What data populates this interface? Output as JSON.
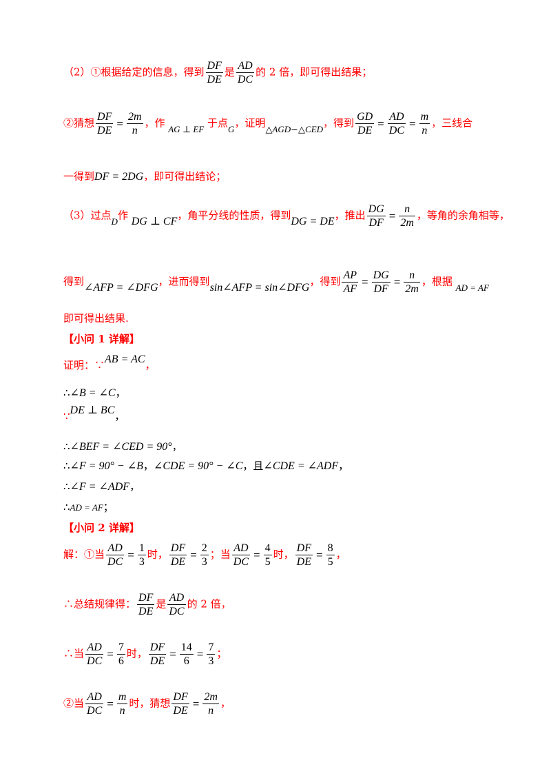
{
  "lines": {
    "l1": {
      "a": "（2）①根据给定的信息，得到",
      "f1_num": "DF",
      "f1_den": "DE",
      "b": "是",
      "f2_num": "AD",
      "f2_den": "DC",
      "c": "的 2 倍，即可得出结果；"
    },
    "l2": {
      "a": "②猜想",
      "f1_num": "DF",
      "f1_den": "DE",
      "eq": "=",
      "f2_num": "2m",
      "f2_den": "n",
      "b": "，作",
      "m1": "AG ⊥ EF",
      "c": "于点",
      "m2": "G",
      "d": "，证明",
      "m3": "△AGD∽△CED",
      "e": "，得到",
      "f3_num": "GD",
      "f3_den": "DE",
      "f4_num": "AD",
      "f4_den": "DC",
      "f5_num": "m",
      "f5_den": "n",
      "f": "，三线合"
    },
    "l3": {
      "a": "一得到",
      "m1": "DF = 2DG",
      "b": "，即可得出结论；"
    },
    "l4": {
      "a": "（3）过点",
      "m1": "D",
      "b": "作",
      "m2": "DG ⊥ CF",
      "c": "，角平分线的性质，得到",
      "m3": "DG = DE",
      "d": "，推出",
      "f1_num": "DG",
      "f1_den": "DF",
      "f2_num": "n",
      "f2_den": "2m",
      "e": "，等角的余角相等，"
    },
    "l5": {
      "a": "得到",
      "m1": "∠AFP = ∠DFG",
      "b": "，进而得到",
      "m2": "sin∠AFP = sin∠DFG",
      "c": "，得到",
      "f1_num": "AP",
      "f1_den": "AF",
      "f2_num": "DG",
      "f2_den": "DF",
      "f3_num": "n",
      "f3_den": "2m",
      "d": "，根据",
      "m3": "AD = AF"
    },
    "l6": {
      "a": "即可得出结果."
    },
    "h1": {
      "a": "【小问 1 详解】"
    },
    "l7": {
      "a": "证明：∵",
      "m1": "AB = AC",
      "b": "，"
    },
    "l8": {
      "a": "∴",
      "m1": "∠B = ∠C",
      "b": "，"
    },
    "l9": {
      "a": "∵",
      "m1": "DE ⊥ BC",
      "b": "，"
    },
    "l10": {
      "a": "∴",
      "m1": "∠BEF = ∠CED = 90°",
      "b": "，"
    },
    "l11": {
      "a": "∴",
      "m1": "∠F = 90° − ∠B",
      "b": "，",
      "m2": "∠CDE = 90° − ∠C",
      "c": "，且",
      "m3": "∠CDE = ∠ADF",
      "d": "，"
    },
    "l12": {
      "a": "∴",
      "m1": "∠F = ∠ADF",
      "b": "，"
    },
    "l13": {
      "a": "∴",
      "m1": "AD = AF",
      "b": "；"
    },
    "h2": {
      "a": "【小问 2 详解】"
    },
    "l14": {
      "a": "解：①当",
      "f1_num": "AD",
      "f1_den": "DC",
      "f2_num": "1",
      "f2_den": "3",
      "b": "时，",
      "f3_num": "DF",
      "f3_den": "DE",
      "f4_num": "2",
      "f4_den": "3",
      "c": "；当",
      "f5_num": "AD",
      "f5_den": "DC",
      "f6_num": "4",
      "f6_den": "5",
      "d": "时，",
      "f7_num": "DF",
      "f7_den": "DE",
      "f8_num": "8",
      "f8_den": "5",
      "e": "，"
    },
    "l15": {
      "a": "∴总结规律得：",
      "f1_num": "DF",
      "f1_den": "DE",
      "b": "是",
      "f2_num": "AD",
      "f2_den": "DC",
      "c": "的 2 倍，"
    },
    "l16": {
      "a": "∴当",
      "f1_num": "AD",
      "f1_den": "DC",
      "f2_num": "7",
      "f2_den": "6",
      "b": "时，",
      "f3_num": "DF",
      "f3_den": "DE",
      "f4_num": "14",
      "f4_den": "6",
      "f5_num": "7",
      "f5_den": "3",
      "c": "；"
    },
    "l17": {
      "a": "②当",
      "f1_num": "AD",
      "f1_den": "DC",
      "f2_num": "m",
      "f2_den": "n",
      "b": "时，猜想",
      "f3_num": "DF",
      "f3_den": "DE",
      "f4_num": "2m",
      "f4_den": "n",
      "c": "，"
    }
  },
  "colors": {
    "text": "#ff0000",
    "math": "#000000"
  }
}
